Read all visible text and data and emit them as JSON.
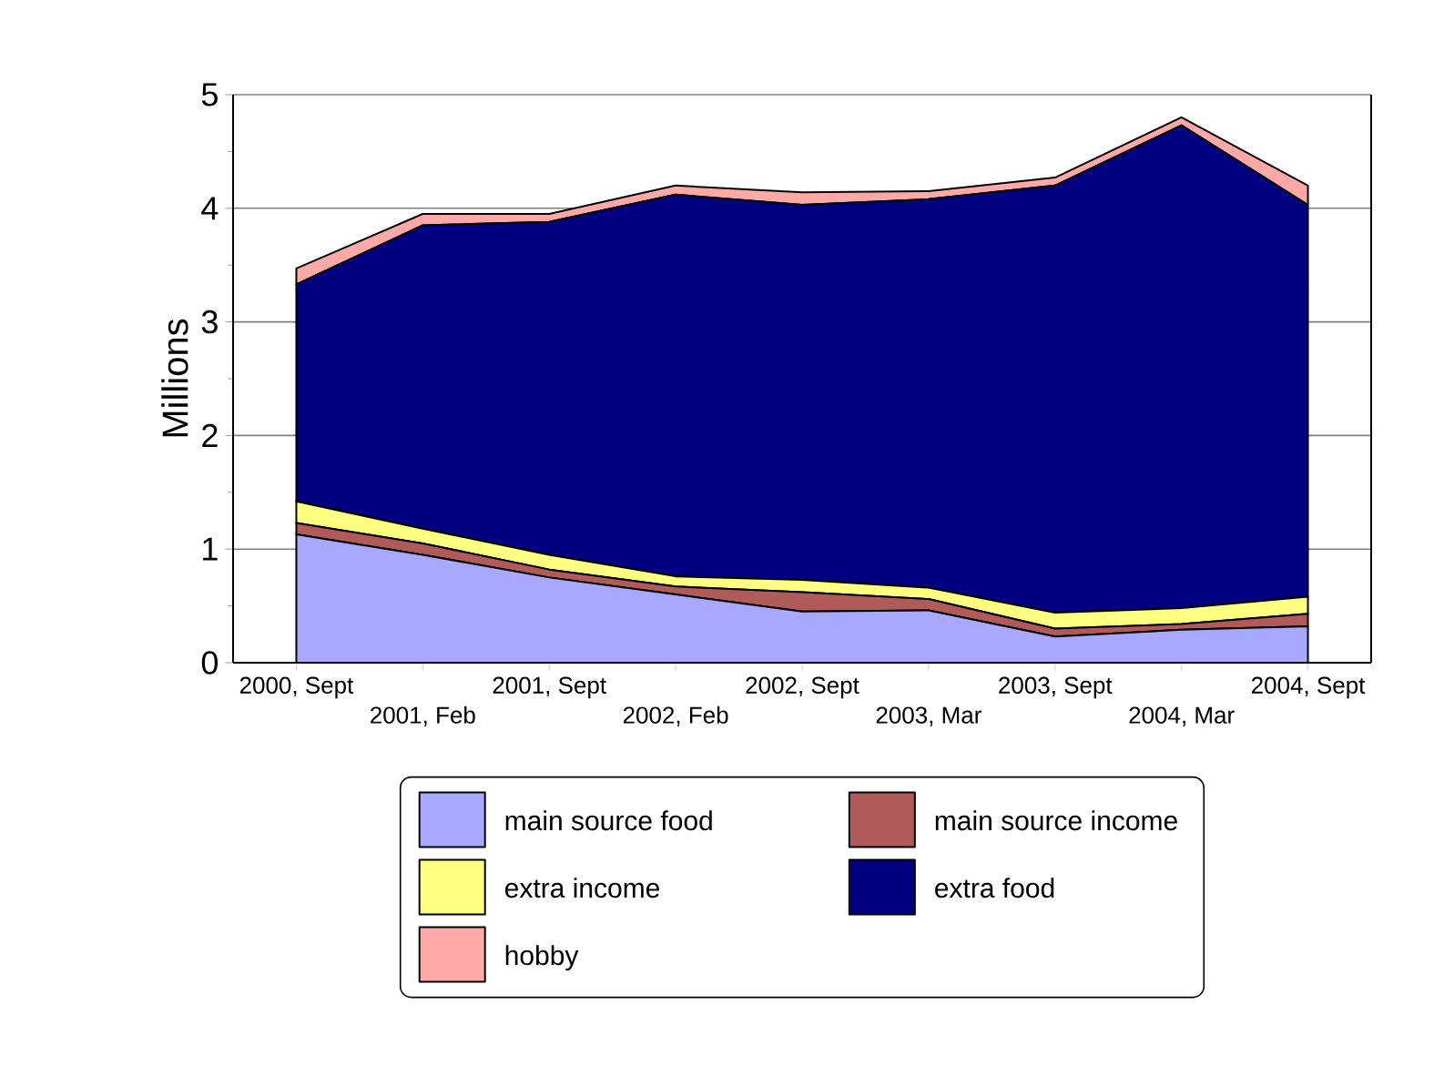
{
  "chart_data": {
    "type": "area",
    "stacked": true,
    "ylabel": "Millions",
    "categories": [
      "2000, Sept",
      "2001, Feb",
      "2001, Sept",
      "2002, Feb",
      "2002, Sept",
      "2003, Mar",
      "2003, Sept",
      "2004, Mar",
      "2004, Sept"
    ],
    "series": [
      {
        "name": "main source food",
        "color": "#a8a8ff",
        "values": [
          1.13,
          0.95,
          0.75,
          0.6,
          0.45,
          0.46,
          0.23,
          0.29,
          0.32
        ]
      },
      {
        "name": "main source income",
        "color": "#b05a5a",
        "values": [
          0.1,
          0.1,
          0.07,
          0.07,
          0.17,
          0.1,
          0.07,
          0.05,
          0.11
        ]
      },
      {
        "name": "extra income",
        "color": "#ffff80",
        "values": [
          0.19,
          0.13,
          0.13,
          0.09,
          0.11,
          0.1,
          0.14,
          0.14,
          0.15
        ]
      },
      {
        "name": "extra food",
        "color": "#000080",
        "values": [
          1.91,
          2.67,
          2.93,
          3.36,
          3.3,
          3.42,
          3.76,
          4.25,
          3.45
        ]
      },
      {
        "name": "hobby",
        "color": "#ffa8a8",
        "values": [
          0.14,
          0.1,
          0.07,
          0.08,
          0.11,
          0.07,
          0.07,
          0.07,
          0.17
        ]
      }
    ],
    "ylim": [
      0,
      5
    ],
    "yticks": [
      0,
      1,
      2,
      3,
      4,
      5
    ],
    "grid": "y",
    "legend": "bottom"
  }
}
